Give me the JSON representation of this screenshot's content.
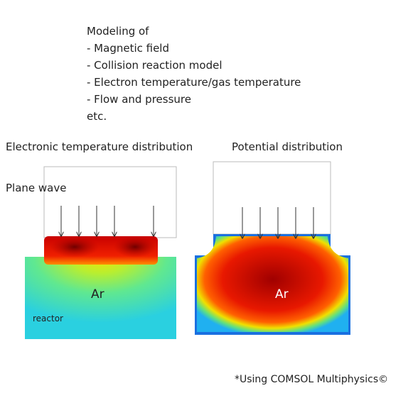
{
  "modeling": {
    "heading": "Modeling of",
    "items": [
      "- Magnetic field",
      "- Collision reaction model",
      "- Electron temperature/gas temperature",
      "- Flow and pressure"
    ],
    "footer": "etc."
  },
  "left_figure": {
    "title": "Electronic temperature distribution",
    "wave_label": "Plane wave",
    "gas_label": "Ar",
    "region_label": "reactor"
  },
  "right_figure": {
    "title": "Potential distribution",
    "gas_label": "Ar"
  },
  "credit": "*Using COMSOL Multiphysics©"
}
